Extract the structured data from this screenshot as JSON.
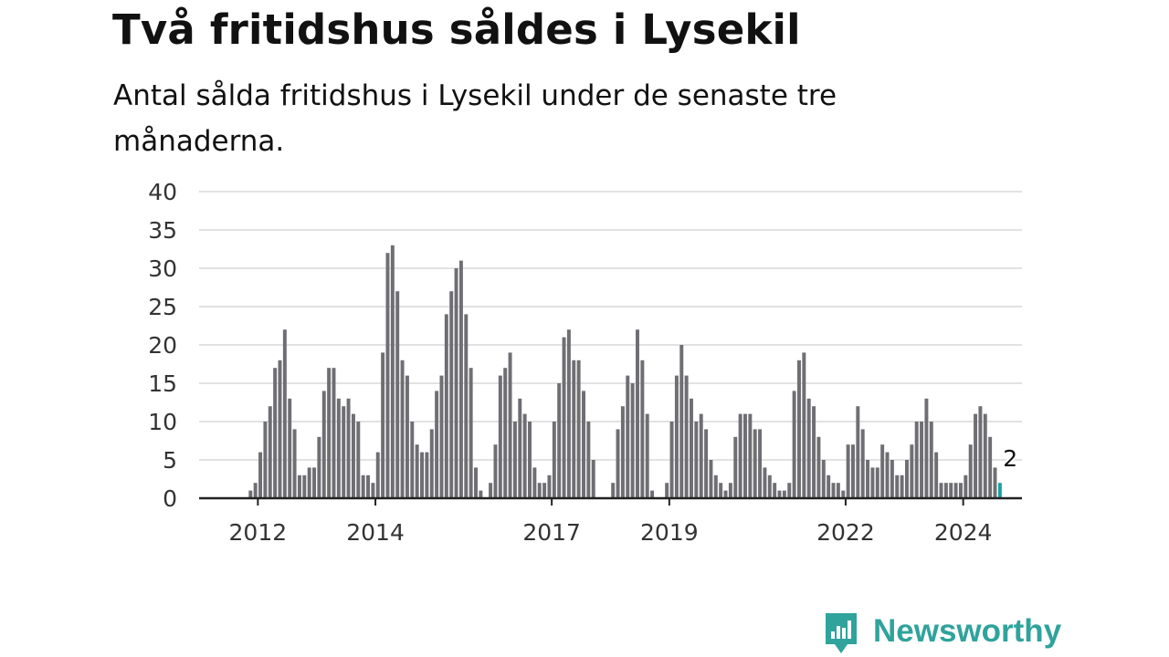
{
  "title": "Två fritidshus såldes i Lysekil",
  "subtitle": "Antal sålda fritidshus i Lysekil under de senaste tre månaderna.",
  "brand": {
    "name": "Newsworthy",
    "color": "#2fa39c",
    "icon": "newsworthy-chart-bubble-icon"
  },
  "colors": {
    "bar": "#6f6e73",
    "highlight": "#1aa29e",
    "grid": "#d9d9d9",
    "axis": "#222222",
    "tick": "#333333"
  },
  "chart_data": {
    "type": "bar",
    "title": "Två fritidshus såldes i Lysekil",
    "subtitle": "Antal sålda fritidshus i Lysekil under de senaste tre månaderna.",
    "xlabel": "",
    "ylabel": "",
    "ylim": [
      0,
      40
    ],
    "yticks": [
      0,
      5,
      10,
      15,
      20,
      25,
      30,
      35,
      40
    ],
    "grid": true,
    "legend": "none",
    "x_start": "2011-01",
    "x_end": "2025-01",
    "xtick_labels": [
      {
        "label": "2012",
        "x": "2012-01"
      },
      {
        "label": "2014",
        "x": "2014-01"
      },
      {
        "label": "2017",
        "x": "2017-01"
      },
      {
        "label": "2019",
        "x": "2019-01"
      },
      {
        "label": "2022",
        "x": "2022-01"
      },
      {
        "label": "2024",
        "x": "2024-01"
      }
    ],
    "first_month": "2011-11",
    "values": [
      1,
      2,
      6,
      10,
      12,
      17,
      18,
      22,
      13,
      9,
      3,
      3,
      4,
      4,
      8,
      14,
      17,
      17,
      13,
      12,
      13,
      11,
      10,
      3,
      3,
      2,
      6,
      19,
      32,
      33,
      27,
      18,
      16,
      10,
      7,
      6,
      6,
      9,
      14,
      16,
      24,
      27,
      30,
      31,
      24,
      17,
      4,
      1,
      0,
      2,
      7,
      16,
      17,
      19,
      10,
      13,
      11,
      10,
      4,
      2,
      2,
      3,
      10,
      15,
      21,
      22,
      18,
      18,
      14,
      10,
      5,
      0,
      0,
      0,
      2,
      9,
      12,
      16,
      15,
      22,
      18,
      11,
      1,
      0,
      0,
      2,
      10,
      16,
      20,
      16,
      13,
      10,
      11,
      9,
      5,
      3,
      2,
      1,
      2,
      8,
      11,
      11,
      11,
      9,
      9,
      4,
      3,
      2,
      1,
      1,
      2,
      14,
      18,
      19,
      13,
      12,
      8,
      5,
      3,
      2,
      2,
      1,
      7,
      7,
      12,
      9,
      5,
      4,
      4,
      7,
      6,
      5,
      3,
      3,
      5,
      7,
      10,
      10,
      13,
      10,
      6,
      2,
      2,
      2,
      2,
      2,
      3,
      7,
      11,
      12,
      11,
      8,
      4,
      2
    ],
    "highlight_last": true,
    "annotation": {
      "text": "2",
      "x": "2024-09"
    }
  }
}
